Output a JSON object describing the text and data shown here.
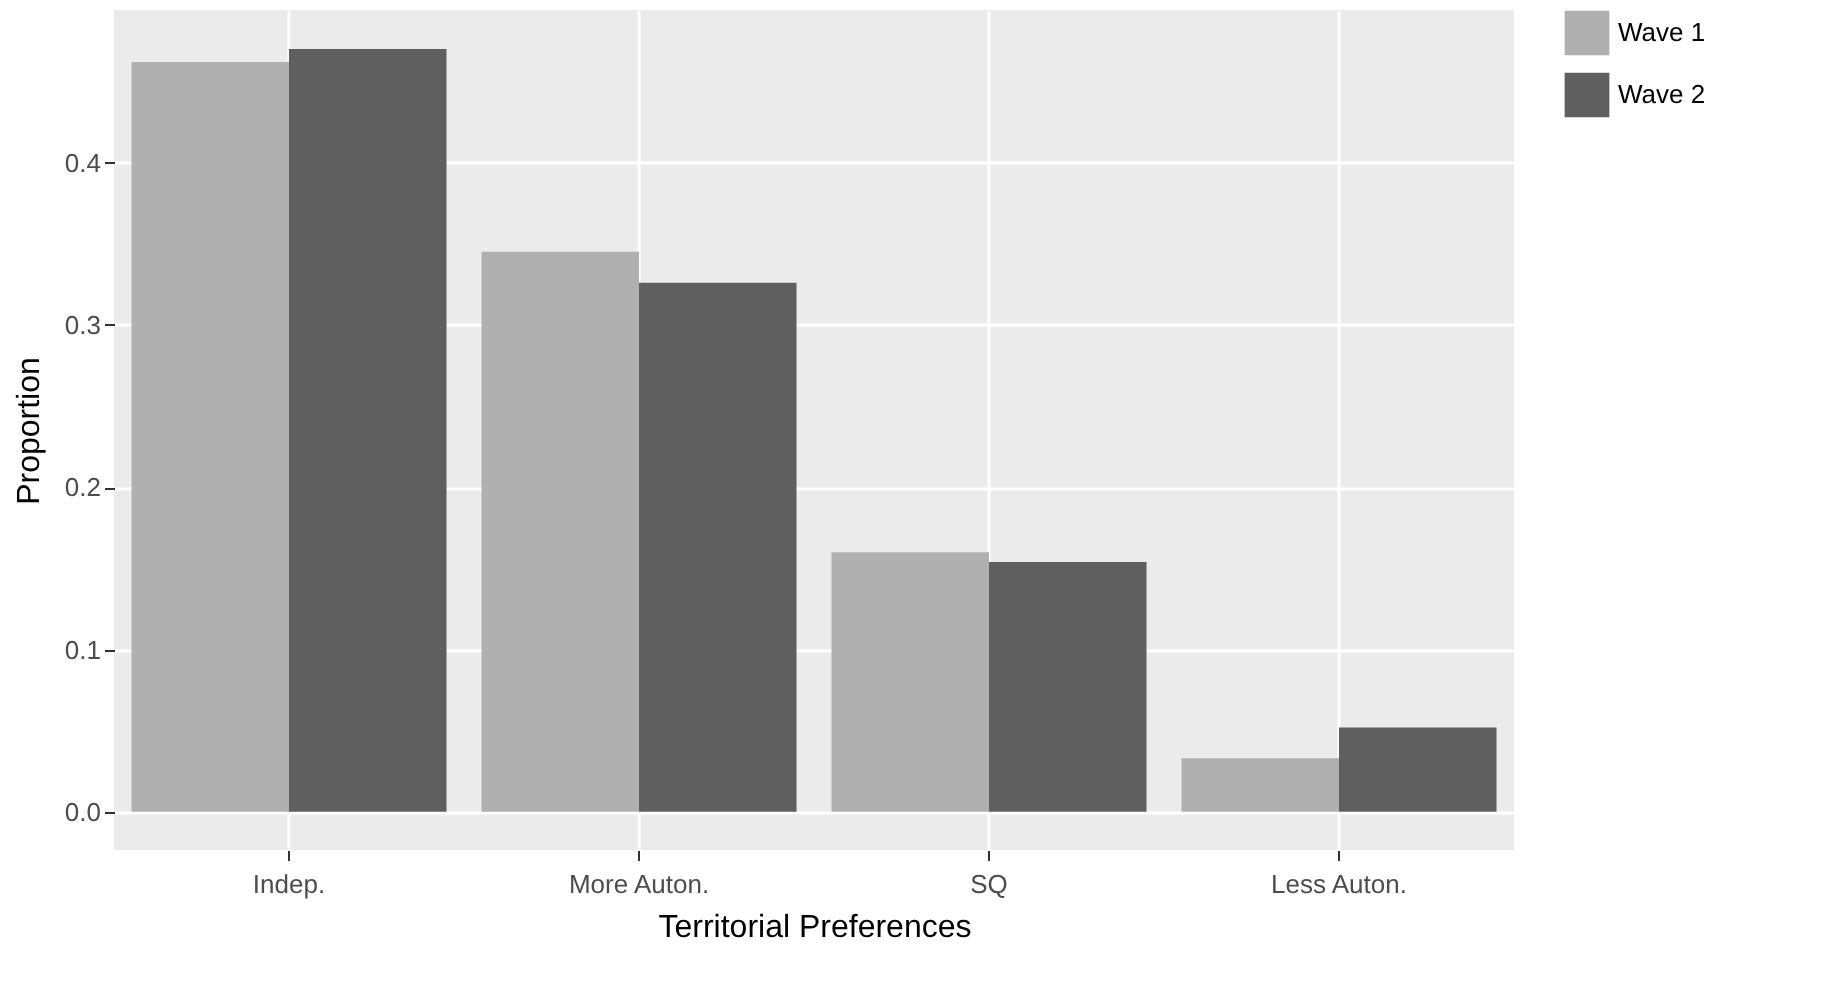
{
  "chart_data": {
    "type": "bar",
    "xlabel": "Territorial Preferences",
    "ylabel": "Proportion",
    "categories": [
      "Indep.",
      "More Auton.",
      "SQ",
      "Less Auton."
    ],
    "series": [
      {
        "name": "Wave 1",
        "color": "#b0b0b0",
        "values": [
          0.462,
          0.345,
          0.16,
          0.033
        ]
      },
      {
        "name": "Wave 2",
        "color": "#5f5f5f",
        "values": [
          0.47,
          0.326,
          0.154,
          0.052
        ]
      }
    ],
    "ylim": [
      -0.0235,
      0.494
    ],
    "yticks": [
      {
        "value": 0,
        "label": "0.0"
      },
      {
        "value": 0.1,
        "label": "0.1"
      },
      {
        "value": 0.2,
        "label": "0.2"
      },
      {
        "value": 0.3,
        "label": "0.3"
      },
      {
        "value": 0.4,
        "label": "0.4"
      }
    ],
    "grid": true,
    "legend": "right"
  }
}
